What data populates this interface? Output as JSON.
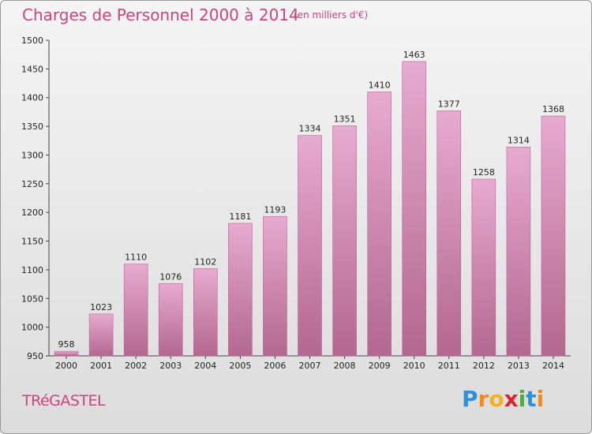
{
  "title": "Charges de Personnel 2000 à 2014",
  "unit_note": "(en milliers d'€)",
  "town": "TRéGASTEL",
  "logo": {
    "text": "Proxiti",
    "letters": [
      {
        "ch": "P",
        "color": "#2f8fd8"
      },
      {
        "ch": "r",
        "color": "#f08a1c"
      },
      {
        "ch": "o",
        "color": "#f0b31c"
      },
      {
        "ch": "x",
        "color": "#d9262c"
      },
      {
        "ch": "i",
        "color": "#4caf3a"
      },
      {
        "ch": "t",
        "color": "#2f8fd8"
      },
      {
        "ch": "i",
        "color": "#f08a1c"
      }
    ]
  },
  "colors": {
    "bar_top": "#e7aad0",
    "bar_bottom": "#b2678f",
    "bar_edge": "#c45f95",
    "title": "#c8467c"
  },
  "chart_data": {
    "type": "bar",
    "categories": [
      "2000",
      "2001",
      "2002",
      "2003",
      "2004",
      "2005",
      "2006",
      "2007",
      "2008",
      "2009",
      "2010",
      "2011",
      "2012",
      "2013",
      "2014"
    ],
    "values": [
      958,
      1023,
      1110,
      1076,
      1102,
      1181,
      1193,
      1334,
      1351,
      1410,
      1463,
      1377,
      1258,
      1314,
      1368
    ],
    "title": "Charges de Personnel 2000 à 2014",
    "ylim": [
      950,
      1500
    ],
    "yticks": [
      950,
      1000,
      1050,
      1100,
      1150,
      1200,
      1250,
      1300,
      1350,
      1400,
      1450,
      1500
    ],
    "grid": false,
    "legend": "none"
  }
}
